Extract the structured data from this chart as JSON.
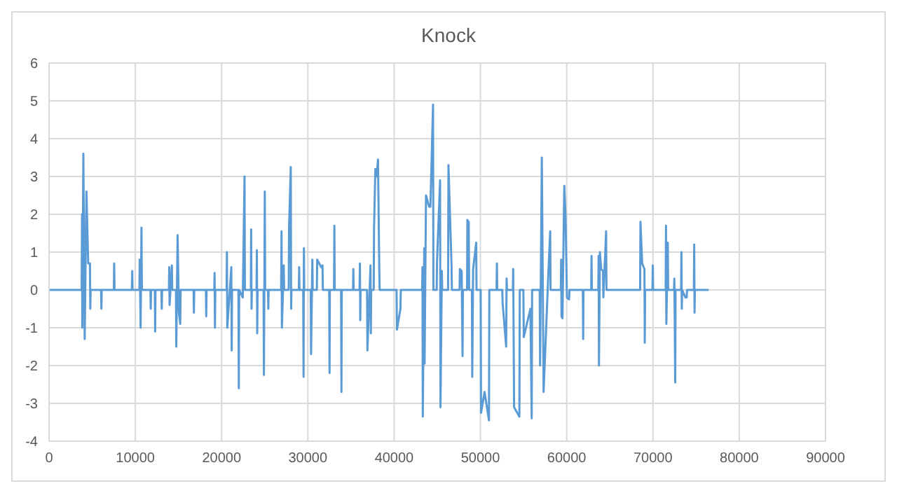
{
  "chart_data": {
    "type": "line",
    "title": "Knock",
    "color": "#5b9bd5",
    "grid": true,
    "xlim": [
      0,
      90000
    ],
    "xticks": [
      0,
      10000,
      20000,
      30000,
      40000,
      50000,
      60000,
      70000,
      80000,
      90000
    ],
    "ylim": [
      -4,
      6
    ],
    "yticks": [
      -4,
      -3,
      -2,
      -1,
      0,
      1,
      2,
      3,
      4,
      5,
      6
    ],
    "x": [
      0,
      3780,
      3824,
      3850,
      3977,
      4130,
      4334,
      4538,
      4742,
      4780,
      4820,
      6030,
      6068,
      6100,
      7510,
      7549,
      7590,
      9600,
      9642,
      9680,
      10470,
      10510,
      10612,
      10714,
      10760,
      11750,
      11786,
      11820,
      12260,
      12297,
      12340,
      13020,
      13062,
      13100,
      13890,
      13930,
      13970,
      14236,
      14280,
      14710,
      14747,
      14900,
      15053,
      15206,
      15250,
      16750,
      16789,
      16830,
      18180,
      18218,
      18260,
      19150,
      19188,
      19230,
      19270,
      20580,
      20617,
      20660,
      21127,
      21170,
      21210,
      21950,
      21995,
      22040,
      22455,
      22659,
      22700,
      23390,
      23425,
      23470,
      23510,
      24050,
      24088,
      24130,
      24170,
      24860,
      24905,
      25007,
      25050,
      25380,
      25415,
      25450,
      26900,
      26946,
      26990,
      27201,
      27250,
      27780,
      27814,
      28018,
      28060,
      28100,
      28950,
      28988,
      29030,
      29460,
      29499,
      29540,
      29580,
      30330,
      30368,
      30520,
      30560,
      31040,
      31082,
      31542,
      31695,
      31740,
      32470,
      32512,
      32550,
      33030,
      33073,
      33110,
      33850,
      33890,
      33930,
      35230,
      35268,
      35310,
      35990,
      36034,
      36070,
      36110,
      36860,
      36902,
      37259,
      37300,
      37340,
      37630,
      37668,
      37821,
      37974,
      38127,
      38280,
      38320,
      40280,
      40322,
      40730,
      40770,
      43240,
      43283,
      43320,
      43487,
      43530,
      43691,
      44049,
      44202,
      44508,
      44550,
      44930,
      44968,
      45325,
      45370,
      45529,
      45570,
      46250,
      46295,
      46652,
      46690,
      47580,
      47623,
      47827,
      47929,
      47970,
      48450,
      48490,
      48644,
      48690,
      49010,
      49052,
      49154,
      49511,
      49550,
      50030,
      50073,
      50481,
      50992,
      51030,
      51870,
      51911,
      51950,
      52530,
      52575,
      52983,
      53034,
      53080,
      53760,
      53800,
      53902,
      54515,
      54560,
      54980,
      55025,
      55791,
      55944,
      55990,
      56870,
      56914,
      57118,
      57322,
      57884,
      58088,
      58130,
      59320,
      59360,
      59400,
      59510,
      59720,
      59870,
      60030,
      60280,
      60320,
      61870,
      61910,
      61950,
      62840,
      62880,
      62920,
      63660,
      63700,
      63740,
      63850,
      64000,
      64210,
      64250,
      64570,
      64610,
      68510,
      68550,
      68750,
      69010,
      69050,
      69090,
      69940,
      69980,
      70020,
      71470,
      71510,
      71550,
      71720,
      71760,
      72440,
      72480,
      72580,
      72620,
      73260,
      73300,
      73340,
      73380,
      73760,
      73910,
      73950,
      74740,
      74780,
      74820,
      74860,
      76460
    ],
    "values": [
      0,
      0,
      2.0,
      -1.0,
      3.6,
      -1.3,
      2.6,
      0.7,
      0.7,
      -0.5,
      0,
      0,
      -0.5,
      0,
      0,
      0.7,
      0,
      0,
      0.5,
      0,
      0,
      0.8,
      -1.0,
      1.65,
      0,
      0,
      -0.5,
      0,
      0,
      -1.1,
      0,
      0,
      -0.5,
      0,
      0,
      0.6,
      -0.4,
      0.65,
      0,
      0,
      -1.5,
      1.45,
      -0.6,
      -0.9,
      0,
      0,
      -0.6,
      0,
      0,
      -0.7,
      0,
      0,
      0.45,
      -1.0,
      0,
      0,
      1.0,
      -1.0,
      0.6,
      -1.6,
      0,
      0,
      -2.6,
      0,
      -0.2,
      3.0,
      0,
      0,
      1.6,
      -0.5,
      0,
      0,
      1.05,
      -1.15,
      0,
      0,
      -2.25,
      2.6,
      0,
      0,
      -0.5,
      0,
      0,
      1.55,
      -1.0,
      0.65,
      0,
      0,
      1.6,
      3.25,
      -0.5,
      0,
      0,
      0.6,
      0,
      0,
      -2.3,
      1.1,
      0,
      0,
      -1.7,
      0.8,
      0,
      0,
      0.8,
      0.6,
      0.65,
      0,
      0,
      -2.2,
      0,
      0,
      1.7,
      0,
      0,
      -2.7,
      0,
      0,
      0.55,
      0,
      0,
      0.7,
      -0.8,
      0,
      0,
      -1.6,
      0.65,
      -1.15,
      0,
      0,
      1.6,
      3.2,
      3.0,
      3.45,
      0.5,
      0,
      0,
      -1.05,
      -0.5,
      0,
      0,
      0.6,
      -3.35,
      1.1,
      -1.95,
      2.5,
      2.2,
      2.2,
      4.9,
      0,
      0,
      0.75,
      2.9,
      -3.1,
      0.5,
      0,
      0,
      3.3,
      0.65,
      0,
      0,
      0.55,
      0.5,
      -1.75,
      0,
      0,
      1.85,
      1.8,
      0,
      0,
      -2.3,
      0.55,
      1.25,
      0,
      0,
      -3.25,
      -2.7,
      -3.45,
      0,
      0,
      0.7,
      0,
      0,
      -0.35,
      -1.5,
      0.3,
      0,
      0,
      0.55,
      -3.1,
      -3.35,
      0,
      0,
      -1.25,
      -0.5,
      -3.4,
      0,
      0,
      -2.0,
      3.5,
      -2.7,
      0.5,
      1.55,
      0,
      0,
      0.8,
      -0.7,
      -0.75,
      2.75,
      1.9,
      -0.2,
      -0.25,
      0,
      0,
      -1.3,
      0,
      0,
      0.9,
      0,
      0,
      0.9,
      -2.0,
      1.0,
      0.55,
      0.5,
      -0.2,
      1.55,
      0,
      0,
      1.8,
      0.7,
      0.55,
      -1.4,
      0,
      0,
      0.65,
      0,
      0,
      1.7,
      -0.9,
      1.25,
      0,
      0,
      0.3,
      -2.45,
      0,
      0,
      1.0,
      -0.5,
      0,
      -0.2,
      -0.2,
      0,
      0,
      1.2,
      -0.6,
      0,
      0
    ]
  }
}
